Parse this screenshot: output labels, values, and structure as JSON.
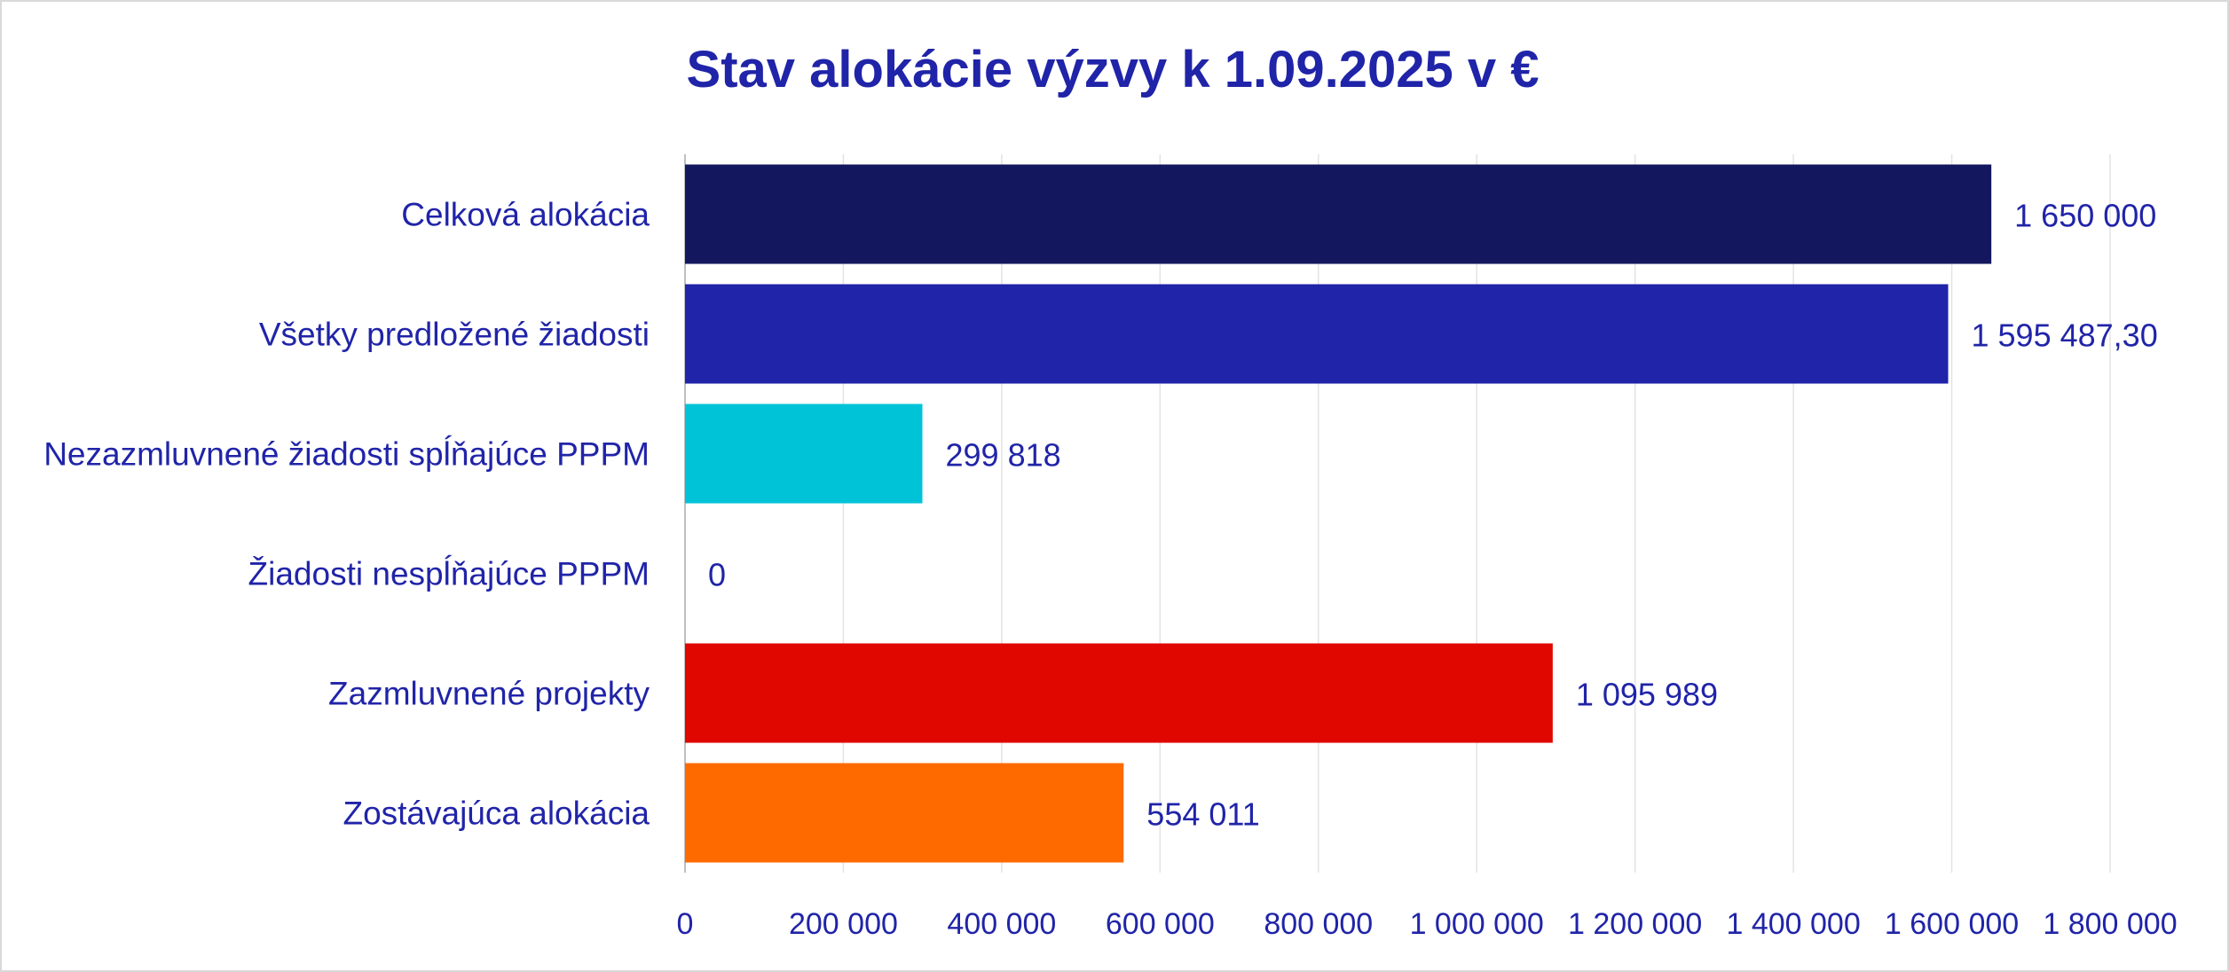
{
  "chart_data": {
    "type": "bar",
    "orientation": "horizontal",
    "title": "Stav alokácie výzvy k 1.09.2025 v €",
    "categories": [
      "Celková alokácia",
      "Všetky predložené žiadosti",
      "Nezazmluvnené žiadosti spĺňajúce PPPM",
      "Žiadosti nespĺňajúce PPPM",
      "Zazmluvnené projekty",
      "Zostávajúca alokácia"
    ],
    "values": [
      1650000,
      1595487.3,
      299818,
      0,
      1095989,
      554011
    ],
    "data_labels": [
      "1 650 000",
      "1 595 487,30",
      "299 818",
      "0",
      "1 095 989",
      "554 011"
    ],
    "bar_colors": [
      "#13175e",
      "#2024a8",
      "#00c3d8",
      "#9e9e9e",
      "#df0700",
      "#ff6a00"
    ],
    "xlim": [
      0,
      1800000
    ],
    "x_ticks": [
      0,
      200000,
      400000,
      600000,
      800000,
      1000000,
      1200000,
      1400000,
      1600000,
      1800000
    ],
    "x_tick_labels": [
      "0",
      "200 000",
      "400 000",
      "600 000",
      "800 000",
      "1 000 000",
      "1 200 000",
      "1 400 000",
      "1 600 000",
      "1 800 000"
    ],
    "grid": "vertical",
    "xlabel": "",
    "ylabel": "",
    "text_color": "#2024a8",
    "grid_color": "#e3e3e3"
  }
}
